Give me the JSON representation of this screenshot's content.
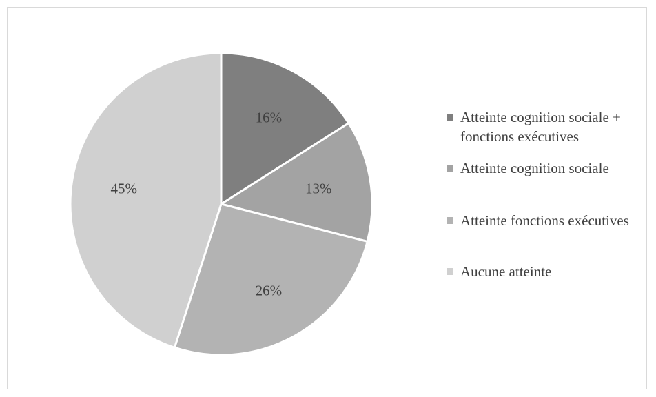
{
  "chart_data": {
    "type": "pie",
    "start_angle_deg": 0,
    "direction": "clockwise",
    "slices": [
      {
        "label": "Atteinte cognition sociale + fonctions exécutives",
        "value": 16,
        "display": "16%",
        "color": "#7f7f7f"
      },
      {
        "label": "Atteinte cognition sociale",
        "value": 13,
        "display": "13%",
        "color": "#a3a3a3"
      },
      {
        "label": "Atteinte fonctions exécutives",
        "value": 26,
        "display": "26%",
        "color": "#b3b3b3"
      },
      {
        "label": "Aucune atteinte",
        "value": 45,
        "display": "45%",
        "color": "#d0d0d0"
      }
    ],
    "legend_position": "right"
  }
}
